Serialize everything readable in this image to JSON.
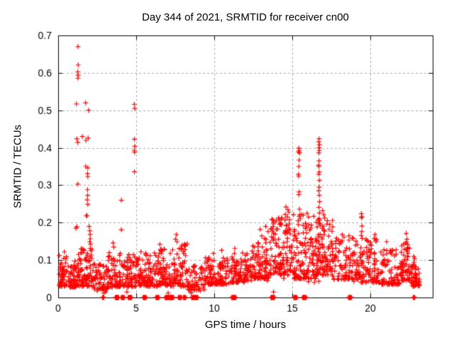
{
  "chart_data": {
    "type": "scatter",
    "title": "Day 344 of 2021, SRMTID for receiver cn00",
    "xlabel": "GPS time / hours",
    "ylabel": "SRMTID / TECUs",
    "xlim": [
      0,
      24
    ],
    "ylim": [
      0,
      0.7
    ],
    "xticks": [
      0,
      5,
      10,
      15,
      20
    ],
    "xtick_labels": [
      "0",
      "5",
      "10",
      "15",
      "20"
    ],
    "yticks": [
      0,
      0.1,
      0.2,
      0.3,
      0.4,
      0.5,
      0.6,
      0.7
    ],
    "ytick_labels": [
      "0",
      "0.1",
      "0.2",
      "0.3",
      "0.4",
      "0.5",
      "0.6",
      "0.7"
    ],
    "grid": true,
    "legend": "none",
    "marker": "plus",
    "marker_color": "#ff0000",
    "grid_color": "#a8a8a8",
    "axis_color": "#000000",
    "background_color": "#ffffff",
    "seed": 1337,
    "outlier_points": [
      [
        1.27,
        0.67
      ],
      [
        1.28,
        0.621
      ],
      [
        1.26,
        0.603
      ],
      [
        1.28,
        0.594
      ],
      [
        1.27,
        0.586
      ],
      [
        1.17,
        0.517
      ],
      [
        1.76,
        0.52
      ],
      [
        1.95,
        0.5
      ],
      [
        1.2,
        0.424
      ],
      [
        1.55,
        0.43
      ],
      [
        1.78,
        0.42
      ],
      [
        1.92,
        0.426
      ],
      [
        1.26,
        0.414
      ],
      [
        1.77,
        0.35
      ],
      [
        1.9,
        0.346
      ],
      [
        1.88,
        0.331
      ],
      [
        1.9,
        0.323
      ],
      [
        1.26,
        0.303
      ],
      [
        1.88,
        0.288
      ],
      [
        1.89,
        0.273
      ],
      [
        1.86,
        0.261
      ],
      [
        1.9,
        0.249
      ],
      [
        1.8,
        0.219
      ],
      [
        1.85,
        0.218
      ],
      [
        1.98,
        0.19
      ],
      [
        1.2,
        0.189
      ],
      [
        1.14,
        0.185
      ],
      [
        2.03,
        0.178
      ],
      [
        2.05,
        0.168
      ],
      [
        2.06,
        0.157
      ],
      [
        2.02,
        0.149
      ],
      [
        2.08,
        0.142
      ],
      [
        2.05,
        0.131
      ],
      [
        2.1,
        0.125
      ],
      [
        4.88,
        0.516
      ],
      [
        4.91,
        0.505
      ],
      [
        4.89,
        0.423
      ],
      [
        4.91,
        0.404
      ],
      [
        4.88,
        0.393
      ],
      [
        4.9,
        0.388
      ],
      [
        4.89,
        0.336
      ],
      [
        4.05,
        0.26
      ],
      [
        4.05,
        0.181
      ],
      [
        3.52,
        0.146
      ],
      [
        3.56,
        0.135
      ],
      [
        5.3,
        0.122
      ],
      [
        6.52,
        0.142
      ],
      [
        6.8,
        0.128
      ],
      [
        7.58,
        0.168
      ],
      [
        7.52,
        0.156
      ],
      [
        7.62,
        0.149
      ],
      [
        8.05,
        0.118
      ],
      [
        9.95,
        0.118
      ],
      [
        10.48,
        0.126
      ],
      [
        11.32,
        0.131
      ],
      [
        12.95,
        0.182
      ],
      [
        13.3,
        0.19
      ],
      [
        13.45,
        0.176
      ],
      [
        14.2,
        0.195
      ],
      [
        14.3,
        0.21
      ],
      [
        14.6,
        0.242
      ],
      [
        14.72,
        0.235
      ],
      [
        14.78,
        0.228
      ],
      [
        14.55,
        0.222
      ],
      [
        14.68,
        0.215
      ],
      [
        14.82,
        0.208
      ],
      [
        15.42,
        0.399
      ],
      [
        15.45,
        0.393
      ],
      [
        15.4,
        0.389
      ],
      [
        15.47,
        0.386
      ],
      [
        15.44,
        0.367
      ],
      [
        15.42,
        0.35
      ],
      [
        15.4,
        0.329
      ],
      [
        15.41,
        0.324
      ],
      [
        15.44,
        0.282
      ],
      [
        15.42,
        0.275
      ],
      [
        15.46,
        0.236
      ],
      [
        15.49,
        0.221
      ],
      [
        15.51,
        0.21
      ],
      [
        15.38,
        0.205
      ],
      [
        15.7,
        0.22
      ],
      [
        15.95,
        0.225
      ],
      [
        16.05,
        0.215
      ],
      [
        16.72,
        0.424
      ],
      [
        16.7,
        0.416
      ],
      [
        16.74,
        0.408
      ],
      [
        16.71,
        0.4
      ],
      [
        16.73,
        0.393
      ],
      [
        16.7,
        0.386
      ],
      [
        16.72,
        0.365
      ],
      [
        16.69,
        0.353
      ],
      [
        16.71,
        0.35
      ],
      [
        16.73,
        0.335
      ],
      [
        16.7,
        0.329
      ],
      [
        16.74,
        0.313
      ],
      [
        16.72,
        0.295
      ],
      [
        16.7,
        0.285
      ],
      [
        16.73,
        0.273
      ],
      [
        16.75,
        0.256
      ],
      [
        16.71,
        0.241
      ],
      [
        16.74,
        0.226
      ],
      [
        16.72,
        0.211
      ],
      [
        16.76,
        0.198
      ],
      [
        16.95,
        0.232
      ],
      [
        17.02,
        0.221
      ],
      [
        17.08,
        0.212
      ],
      [
        17.25,
        0.205
      ],
      [
        17.4,
        0.195
      ],
      [
        18.2,
        0.168
      ],
      [
        18.9,
        0.158
      ],
      [
        19.43,
        0.224
      ],
      [
        19.46,
        0.216
      ],
      [
        19.44,
        0.213
      ],
      [
        19.47,
        0.191
      ],
      [
        19.45,
        0.176
      ],
      [
        19.42,
        0.166
      ],
      [
        19.48,
        0.158
      ],
      [
        20.3,
        0.168
      ],
      [
        20.25,
        0.158
      ],
      [
        21.05,
        0.149
      ],
      [
        22.3,
        0.171
      ],
      [
        22.35,
        0.156
      ],
      [
        22.33,
        0.148
      ],
      [
        22.4,
        0.141
      ],
      [
        22.42,
        0.133
      ],
      [
        0.4,
        0.122
      ],
      [
        0.07,
        0.112
      ],
      [
        2.92,
        0.012
      ],
      [
        2.95,
        0.022
      ],
      [
        3.05,
        0.015
      ],
      [
        2.5,
        0.018
      ],
      [
        4.4,
        0.015
      ],
      [
        7.05,
        0.012
      ],
      [
        8.52,
        0.012
      ],
      [
        9.1,
        0.018
      ],
      [
        13.8,
        0.015
      ]
    ],
    "band_segments_format": "[x_start, x_end, count, y_min, y_max, density_power_toward_ymin]",
    "band_segments": [
      [
        0.05,
        0.6,
        55,
        0.03,
        0.115,
        1.7
      ],
      [
        0.6,
        1.2,
        55,
        0.028,
        0.1,
        1.8
      ],
      [
        1.2,
        2.3,
        95,
        0.03,
        0.13,
        1.7
      ],
      [
        2.3,
        3.2,
        60,
        0.022,
        0.092,
        1.8
      ],
      [
        3.2,
        4.0,
        62,
        0.028,
        0.125,
        1.8
      ],
      [
        4.0,
        4.85,
        60,
        0.028,
        0.115,
        1.8
      ],
      [
        4.85,
        5.6,
        55,
        0.03,
        0.11,
        1.8
      ],
      [
        5.6,
        6.4,
        60,
        0.03,
        0.12,
        1.8
      ],
      [
        6.4,
        7.2,
        65,
        0.032,
        0.13,
        1.8
      ],
      [
        7.2,
        8.3,
        80,
        0.03,
        0.145,
        1.8
      ],
      [
        8.3,
        9.4,
        55,
        0.02,
        0.085,
        1.8
      ],
      [
        9.4,
        11.0,
        110,
        0.035,
        0.11,
        1.7
      ],
      [
        11.0,
        12.4,
        100,
        0.04,
        0.12,
        1.7
      ],
      [
        12.4,
        13.5,
        85,
        0.05,
        0.165,
        1.6
      ],
      [
        13.5,
        15.0,
        125,
        0.06,
        0.215,
        1.6
      ],
      [
        15.0,
        16.5,
        125,
        0.05,
        0.225,
        1.6
      ],
      [
        16.5,
        17.6,
        105,
        0.06,
        0.215,
        1.6
      ],
      [
        17.6,
        19.3,
        105,
        0.048,
        0.165,
        1.8
      ],
      [
        19.3,
        20.6,
        85,
        0.04,
        0.158,
        1.8
      ],
      [
        20.6,
        21.9,
        80,
        0.035,
        0.128,
        1.8
      ],
      [
        21.9,
        22.6,
        55,
        0.045,
        0.15,
        1.7
      ],
      [
        22.6,
        23.15,
        50,
        0.03,
        0.11,
        1.8
      ],
      [
        0.05,
        23.1,
        80,
        0.04,
        0.092,
        1.3
      ]
    ],
    "zero_clusters_format": "[x_center_hours, half_width_hours, point_count] at y=0",
    "zero_clusters": [
      [
        2.88,
        0.02,
        2
      ],
      [
        3.77,
        0.09,
        5
      ],
      [
        4.14,
        0.08,
        4
      ],
      [
        4.6,
        0.09,
        5
      ],
      [
        5.54,
        0.08,
        4
      ],
      [
        6.36,
        0.08,
        4
      ],
      [
        7.05,
        0.18,
        8
      ],
      [
        7.3,
        0.08,
        4
      ],
      [
        7.8,
        0.08,
        4
      ],
      [
        8.1,
        0.06,
        3
      ],
      [
        8.75,
        0.18,
        8
      ],
      [
        11.25,
        0.12,
        6
      ],
      [
        13.75,
        0.1,
        5
      ],
      [
        15.2,
        0.08,
        4
      ],
      [
        15.78,
        0.1,
        5
      ],
      [
        18.7,
        0.08,
        4
      ],
      [
        22.8,
        0.03,
        2
      ]
    ]
  }
}
